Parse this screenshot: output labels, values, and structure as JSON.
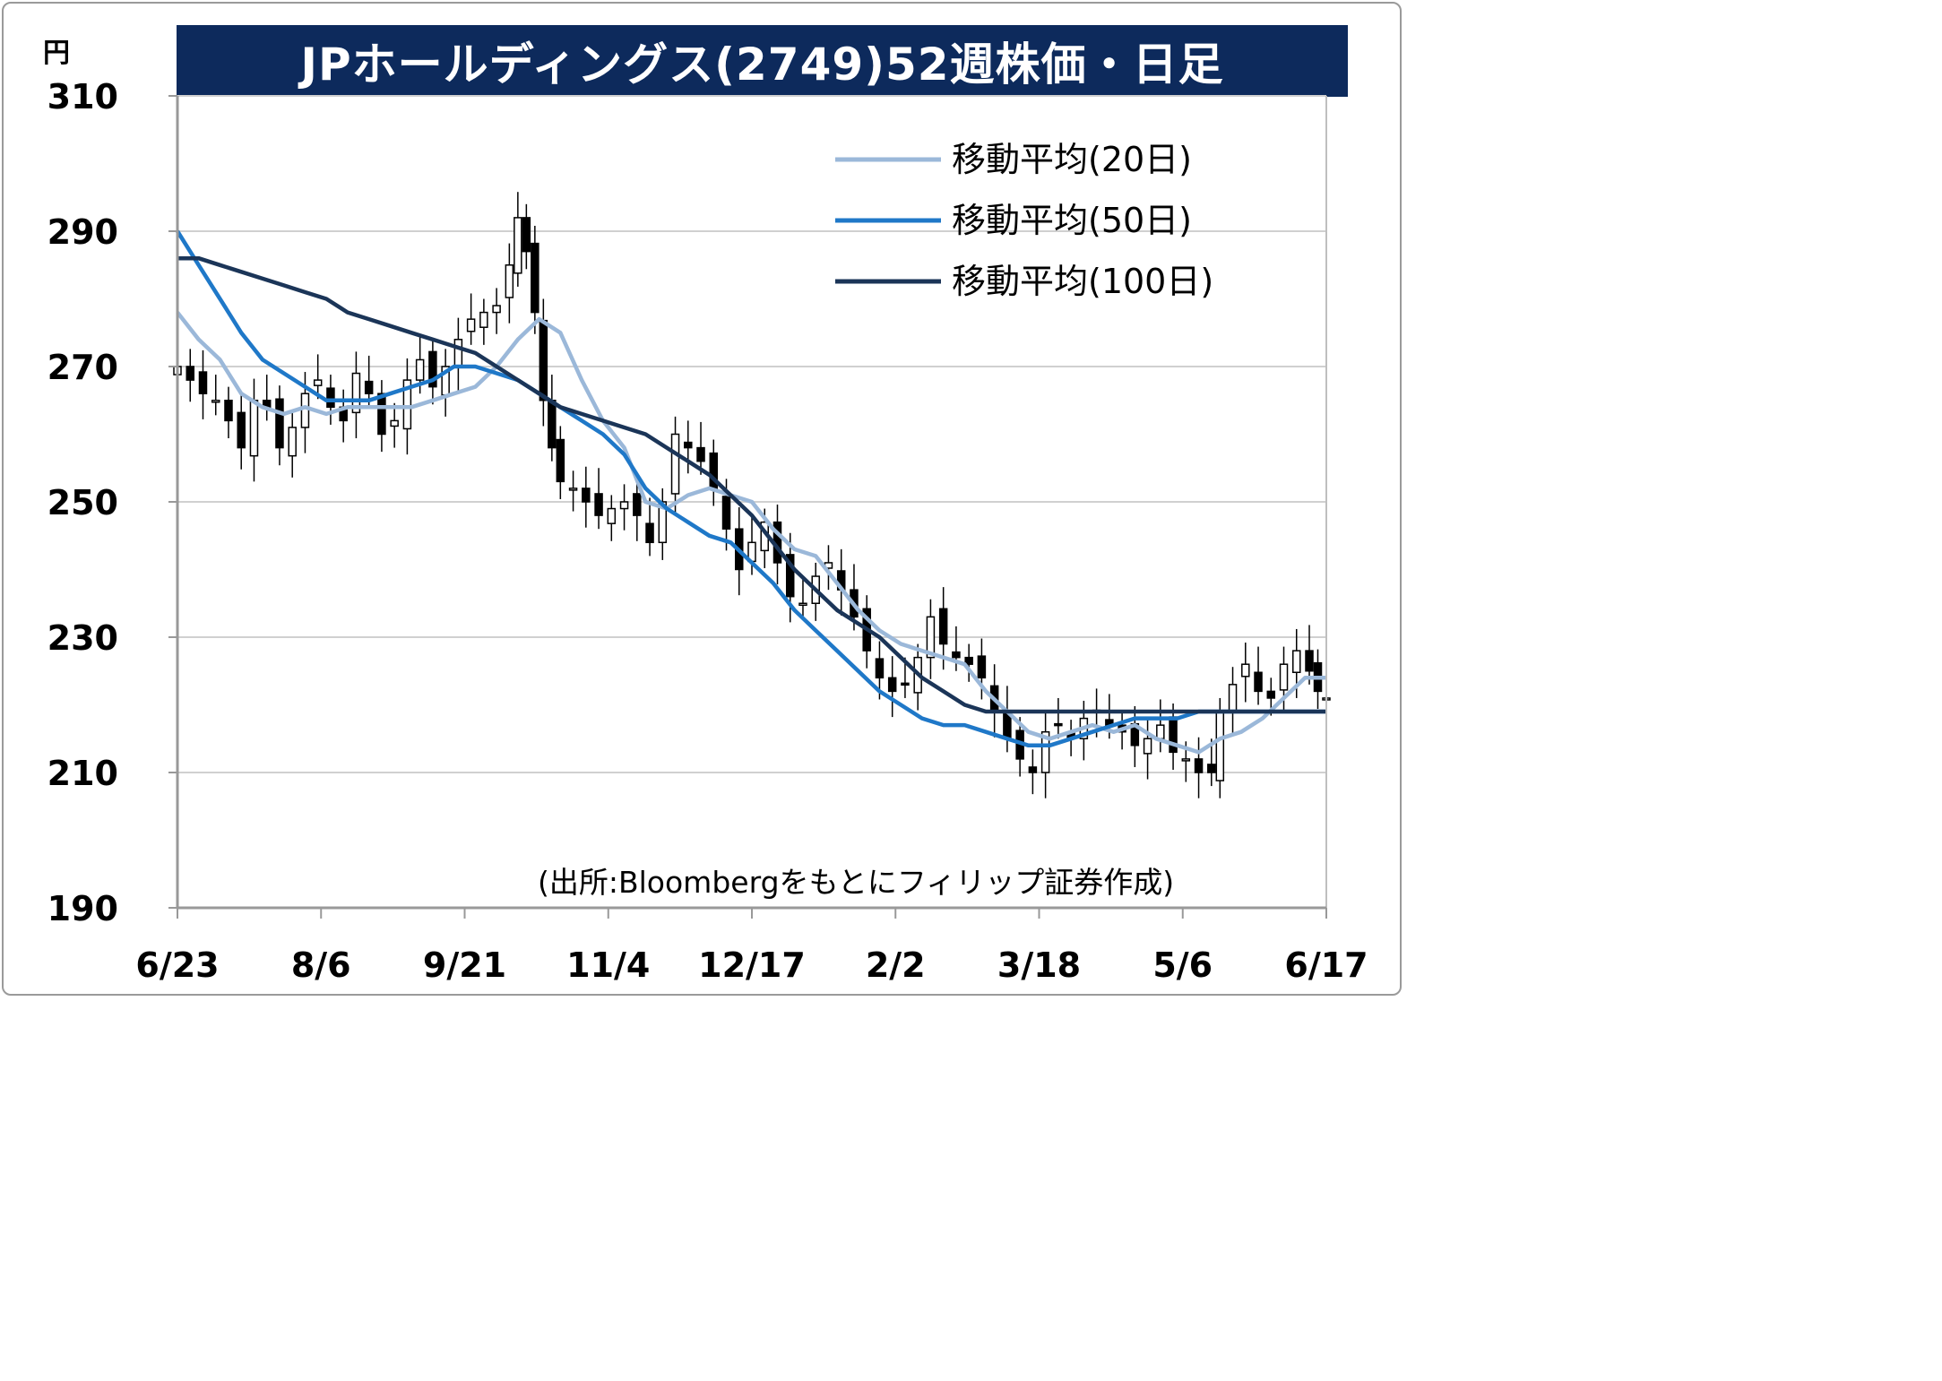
{
  "title": "JPホールディングス(2749)52週株価・日足",
  "y_unit": "円",
  "source": "(出所:Bloombergをもとにフィリップ証券作成)",
  "colors": {
    "title_bg": "#0d2a5c",
    "ma20": "#9bb8d9",
    "ma50": "#1f78c8",
    "ma100": "#1b3558",
    "candle": "#000000",
    "grid": "#d0d0d0"
  },
  "chart_data": {
    "type": "candlestick",
    "title": "JPホールディングス(2749)52週株価・日足",
    "ylabel": "円",
    "ylim": [
      190,
      310
    ],
    "yticks": [
      310,
      290,
      270,
      250,
      230,
      210,
      190
    ],
    "xticks": [
      "6/23",
      "8/6",
      "9/21",
      "11/4",
      "12/17",
      "2/2",
      "3/18",
      "5/6",
      "6/17"
    ],
    "x_range_days": [
      0,
      250
    ],
    "legend": [
      {
        "name": "移動平均(20日)",
        "color": "#9bb8d9"
      },
      {
        "name": "移動平均(50日)",
        "color": "#1f78c8"
      },
      {
        "name": "移動平均(100日)",
        "color": "#1b3558"
      }
    ],
    "legend_position": "top-right",
    "grid": true,
    "series": [
      {
        "name": "移動平均(20日)",
        "points": [
          [
            0,
            278
          ],
          [
            5,
            274
          ],
          [
            10,
            271
          ],
          [
            15,
            266
          ],
          [
            20,
            264
          ],
          [
            25,
            263
          ],
          [
            30,
            264
          ],
          [
            35,
            263
          ],
          [
            40,
            264
          ],
          [
            45,
            264
          ],
          [
            50,
            264
          ],
          [
            55,
            264
          ],
          [
            60,
            265
          ],
          [
            65,
            266
          ],
          [
            70,
            267
          ],
          [
            75,
            270
          ],
          [
            80,
            274
          ],
          [
            85,
            277
          ],
          [
            90,
            275
          ],
          [
            95,
            268
          ],
          [
            100,
            262
          ],
          [
            105,
            258
          ],
          [
            110,
            250
          ],
          [
            115,
            249
          ],
          [
            120,
            251
          ],
          [
            125,
            252
          ],
          [
            130,
            251
          ],
          [
            135,
            250
          ],
          [
            140,
            246
          ],
          [
            145,
            243
          ],
          [
            150,
            242
          ],
          [
            155,
            238
          ],
          [
            160,
            234
          ],
          [
            165,
            231
          ],
          [
            170,
            229
          ],
          [
            175,
            228
          ],
          [
            180,
            227
          ],
          [
            185,
            226
          ],
          [
            190,
            222
          ],
          [
            195,
            219
          ],
          [
            200,
            216
          ],
          [
            205,
            215
          ],
          [
            210,
            216
          ],
          [
            215,
            217
          ],
          [
            220,
            216
          ],
          [
            225,
            217
          ],
          [
            230,
            215
          ],
          [
            235,
            214
          ],
          [
            240,
            213
          ],
          [
            245,
            215
          ],
          [
            250,
            216
          ],
          [
            255,
            218
          ],
          [
            260,
            221
          ],
          [
            265,
            224
          ],
          [
            270,
            224
          ]
        ]
      },
      {
        "name": "移動平均(50日)",
        "points": [
          [
            0,
            290
          ],
          [
            5,
            285
          ],
          [
            10,
            280
          ],
          [
            15,
            275
          ],
          [
            20,
            271
          ],
          [
            25,
            269
          ],
          [
            30,
            267
          ],
          [
            35,
            265
          ],
          [
            40,
            265
          ],
          [
            45,
            265
          ],
          [
            50,
            266
          ],
          [
            55,
            267
          ],
          [
            60,
            268
          ],
          [
            65,
            270
          ],
          [
            70,
            270
          ],
          [
            75,
            269
          ],
          [
            80,
            268
          ],
          [
            85,
            266
          ],
          [
            90,
            264
          ],
          [
            95,
            262
          ],
          [
            100,
            260
          ],
          [
            105,
            257
          ],
          [
            110,
            252
          ],
          [
            115,
            249
          ],
          [
            120,
            247
          ],
          [
            125,
            245
          ],
          [
            130,
            244
          ],
          [
            135,
            241
          ],
          [
            140,
            238
          ],
          [
            145,
            234
          ],
          [
            150,
            231
          ],
          [
            155,
            228
          ],
          [
            160,
            225
          ],
          [
            165,
            222
          ],
          [
            170,
            220
          ],
          [
            175,
            218
          ],
          [
            180,
            217
          ],
          [
            185,
            217
          ],
          [
            190,
            216
          ],
          [
            195,
            215
          ],
          [
            200,
            214
          ],
          [
            205,
            214
          ],
          [
            210,
            215
          ],
          [
            215,
            216
          ],
          [
            220,
            217
          ],
          [
            225,
            218
          ],
          [
            230,
            218
          ],
          [
            235,
            218
          ],
          [
            240,
            219
          ],
          [
            245,
            219
          ],
          [
            250,
            219
          ],
          [
            255,
            219
          ],
          [
            260,
            219
          ],
          [
            265,
            219
          ],
          [
            270,
            219
          ]
        ]
      },
      {
        "name": "移動平均(100日)",
        "points": [
          [
            0,
            286
          ],
          [
            5,
            286
          ],
          [
            10,
            285
          ],
          [
            15,
            284
          ],
          [
            20,
            283
          ],
          [
            25,
            282
          ],
          [
            30,
            281
          ],
          [
            35,
            280
          ],
          [
            40,
            278
          ],
          [
            45,
            277
          ],
          [
            50,
            276
          ],
          [
            55,
            275
          ],
          [
            60,
            274
          ],
          [
            65,
            273
          ],
          [
            70,
            272
          ],
          [
            75,
            270
          ],
          [
            80,
            268
          ],
          [
            85,
            266
          ],
          [
            90,
            264
          ],
          [
            95,
            263
          ],
          [
            100,
            262
          ],
          [
            105,
            261
          ],
          [
            110,
            260
          ],
          [
            115,
            258
          ],
          [
            120,
            256
          ],
          [
            125,
            254
          ],
          [
            130,
            251
          ],
          [
            135,
            248
          ],
          [
            140,
            244
          ],
          [
            145,
            240
          ],
          [
            150,
            237
          ],
          [
            155,
            234
          ],
          [
            160,
            232
          ],
          [
            165,
            230
          ],
          [
            170,
            227
          ],
          [
            175,
            224
          ],
          [
            180,
            222
          ],
          [
            185,
            220
          ],
          [
            190,
            219
          ],
          [
            195,
            219
          ],
          [
            200,
            219
          ],
          [
            205,
            219
          ],
          [
            210,
            219
          ],
          [
            215,
            219
          ],
          [
            220,
            219
          ],
          [
            225,
            219
          ],
          [
            230,
            219
          ],
          [
            235,
            219
          ],
          [
            240,
            219
          ],
          [
            245,
            219
          ],
          [
            250,
            219
          ],
          [
            255,
            219
          ],
          [
            260,
            219
          ],
          [
            265,
            219
          ],
          [
            270,
            219
          ]
        ]
      }
    ],
    "candles_close_approx": [
      [
        0,
        270
      ],
      [
        3,
        268
      ],
      [
        6,
        266
      ],
      [
        9,
        265
      ],
      [
        12,
        262
      ],
      [
        15,
        258
      ],
      [
        18,
        265
      ],
      [
        21,
        264
      ],
      [
        24,
        258
      ],
      [
        27,
        261
      ],
      [
        30,
        266
      ],
      [
        33,
        268
      ],
      [
        36,
        264
      ],
      [
        39,
        262
      ],
      [
        42,
        269
      ],
      [
        45,
        266
      ],
      [
        48,
        260
      ],
      [
        51,
        262
      ],
      [
        54,
        268
      ],
      [
        57,
        271
      ],
      [
        60,
        267
      ],
      [
        63,
        270
      ],
      [
        66,
        274
      ],
      [
        69,
        277
      ],
      [
        72,
        278
      ],
      [
        75,
        279
      ],
      [
        78,
        285
      ],
      [
        80,
        292
      ],
      [
        82,
        287
      ],
      [
        84,
        278
      ],
      [
        86,
        265
      ],
      [
        88,
        258
      ],
      [
        90,
        253
      ],
      [
        93,
        252
      ],
      [
        96,
        250
      ],
      [
        99,
        248
      ],
      [
        102,
        249
      ],
      [
        105,
        250
      ],
      [
        108,
        248
      ],
      [
        111,
        244
      ],
      [
        114,
        250
      ],
      [
        117,
        260
      ],
      [
        120,
        258
      ],
      [
        123,
        256
      ],
      [
        126,
        252
      ],
      [
        129,
        246
      ],
      [
        132,
        240
      ],
      [
        135,
        244
      ],
      [
        138,
        247
      ],
      [
        141,
        241
      ],
      [
        144,
        236
      ],
      [
        147,
        235
      ],
      [
        150,
        239
      ],
      [
        153,
        241
      ],
      [
        156,
        237
      ],
      [
        159,
        233
      ],
      [
        162,
        228
      ],
      [
        165,
        224
      ],
      [
        168,
        222
      ],
      [
        171,
        223
      ],
      [
        174,
        227
      ],
      [
        177,
        233
      ],
      [
        180,
        229
      ],
      [
        183,
        227
      ],
      [
        186,
        226
      ],
      [
        189,
        224
      ],
      [
        192,
        219
      ],
      [
        195,
        215
      ],
      [
        198,
        212
      ],
      [
        201,
        210
      ],
      [
        204,
        216
      ],
      [
        207,
        217
      ],
      [
        210,
        215
      ],
      [
        213,
        218
      ],
      [
        216,
        219
      ],
      [
        219,
        217
      ],
      [
        222,
        216
      ],
      [
        225,
        214
      ],
      [
        228,
        215
      ],
      [
        231,
        217
      ],
      [
        234,
        213
      ],
      [
        237,
        212
      ],
      [
        240,
        210
      ],
      [
        243,
        210
      ],
      [
        245,
        219
      ],
      [
        248,
        223
      ],
      [
        251,
        226
      ],
      [
        254,
        222
      ],
      [
        257,
        221
      ],
      [
        260,
        226
      ],
      [
        263,
        228
      ],
      [
        266,
        225
      ],
      [
        268,
        222
      ],
      [
        270,
        221
      ]
    ]
  }
}
